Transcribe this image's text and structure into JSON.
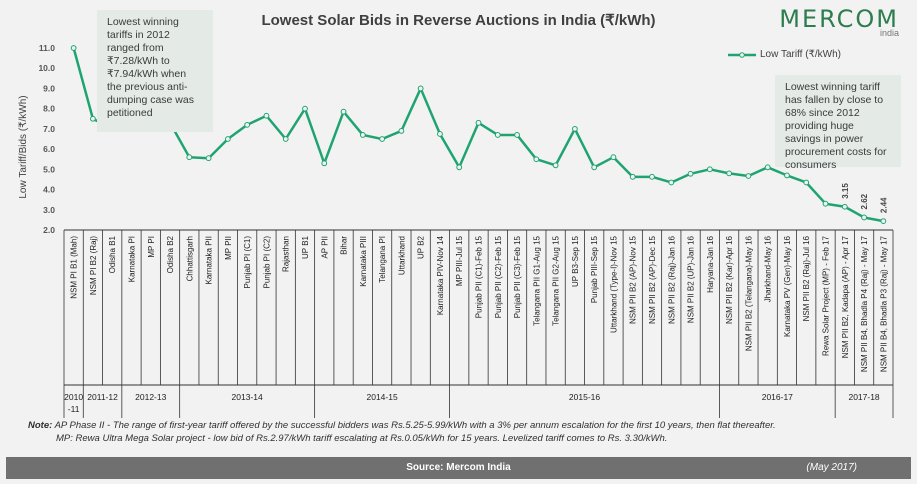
{
  "chart_data": {
    "type": "line",
    "title": "Lowest Solar Bids in Reverse Auctions in India (₹/kWh)",
    "ylabel": "Low Tariff/Bids (₹/kWh)",
    "xlabel": "",
    "ylim": [
      2.0,
      11.0
    ],
    "yticks": [
      "2.0",
      "3.0",
      "4.0",
      "5.0",
      "6.0",
      "7.0",
      "8.0",
      "9.0",
      "10.0",
      "11.0"
    ],
    "grid": false,
    "legend": {
      "placement": "top-right",
      "entries": [
        "Low Tariff (₹/kWh)"
      ]
    },
    "series_color": "#1fa471",
    "categories": [
      "NSM PI B1 (Mah)",
      "NSM PI B2 (Raj)",
      "Odisha B1",
      "Karnataka PI",
      "MP PI",
      "Odisha B2",
      "Chhattisgarh",
      "Karnataka PII",
      "MP PII",
      "Punjab PI (C1)",
      "Punjab PI (C2)",
      "Rajasthan",
      "UP B1",
      "AP PII",
      "Bihar",
      "Karnataka PIII",
      "Telangana PI",
      "Uttarkhand",
      "UP B2",
      "Karnataka PIV-Nov 14",
      "MP PIII-Jul 15",
      "Punjab PII (C1)-Feb 15",
      "Punjab PII (C2)-Feb 15",
      "Punjab PII (C3)-Feb 15",
      "Telangana PII G1-Aug 15",
      "Telangana PII G2-Aug 15",
      "UP B3-Sep 15",
      "Punjab PIII-Sep 15",
      "Uttarkhand (Type-I)-Nov 15",
      "NSM PII B2 (AP)-Nov 15",
      "NSM PII B2 (AP)-Dec 15",
      "NSM PII B2 (Raj)-Jan 16",
      "NSM PII B2 (UP)-Jan 16",
      "Haryana-Jan 16",
      "NSM PII B2 (Kar)-Apr 16",
      "NSM PII B2 (Telangana)-May 16",
      "Jharkhand-May 16",
      "Karnataka PV (Gen)-May 16",
      "NSM PII B2 (Raj)-Jul 16",
      "Rewa Solar Project (MP) - Feb 17",
      "NSM PII B2, Kadapa (AP) - Apr 17",
      "NSM PII B4, Bhadla P4 (Raj) - May 17",
      "NSM PII B4, Bhadla P3 (Raj) - May 17"
    ],
    "series": [
      {
        "name": "Low Tariff (₹/kWh)",
        "values": [
          11.0,
          7.5,
          7.0,
          7.94,
          7.9,
          7.3,
          5.6,
          5.55,
          6.5,
          7.2,
          7.65,
          6.5,
          8.0,
          5.3,
          7.85,
          6.7,
          6.5,
          6.9,
          9.0,
          6.75,
          5.1,
          7.3,
          6.7,
          6.7,
          5.5,
          5.2,
          7.0,
          5.1,
          5.6,
          4.63,
          4.63,
          4.35,
          4.78,
          5.0,
          4.8,
          4.67,
          5.1,
          4.7,
          4.35,
          3.3,
          3.15,
          2.62,
          2.44
        ]
      }
    ],
    "data_labels": [
      {
        "index": 40,
        "text": "3.15"
      },
      {
        "index": 41,
        "text": "2.62"
      },
      {
        "index": 42,
        "text": "2.44"
      }
    ],
    "year_groups": [
      {
        "label": "2010\n-11",
        "count": 1
      },
      {
        "label": "2011-12",
        "count": 2
      },
      {
        "label": "2012-13",
        "count": 3
      },
      {
        "label": "2013-14",
        "count": 7
      },
      {
        "label": "2014-15",
        "count": 7
      },
      {
        "label": "2015-16",
        "count": 14
      },
      {
        "label": "2016-17",
        "count": 6
      },
      {
        "label": "2017-18",
        "count": 3
      }
    ]
  },
  "logo": {
    "name": "MERCOM",
    "sub": "india"
  },
  "annotations": {
    "left": "Lowest winning tariffs in 2012 ranged from ₹7.28/kWh to ₹7.94/kWh when the previous anti-dumping case was petitioned",
    "right": "Lowest winning tariff has fallen by close to 68% since 2012 providing huge savings in power procurement costs for consumers"
  },
  "notes": {
    "label": "Note:",
    "line1": " AP Phase II - The range of first-year tariff offered by the successful bidders was Rs.5.25-5.99/kWh with a 3% per annum escalation for the first 10 years, then flat thereafter.",
    "line2": "MP: Rewa Ultra Mega Solar project - low bid of Rs.2.97/kWh tariff escalating at Rs.0.05/kWh for 15 years. Levelized tariff comes to Rs. 3.30/kWh."
  },
  "footer": {
    "source": "Source: Mercom India",
    "date": "(May 2017)"
  }
}
